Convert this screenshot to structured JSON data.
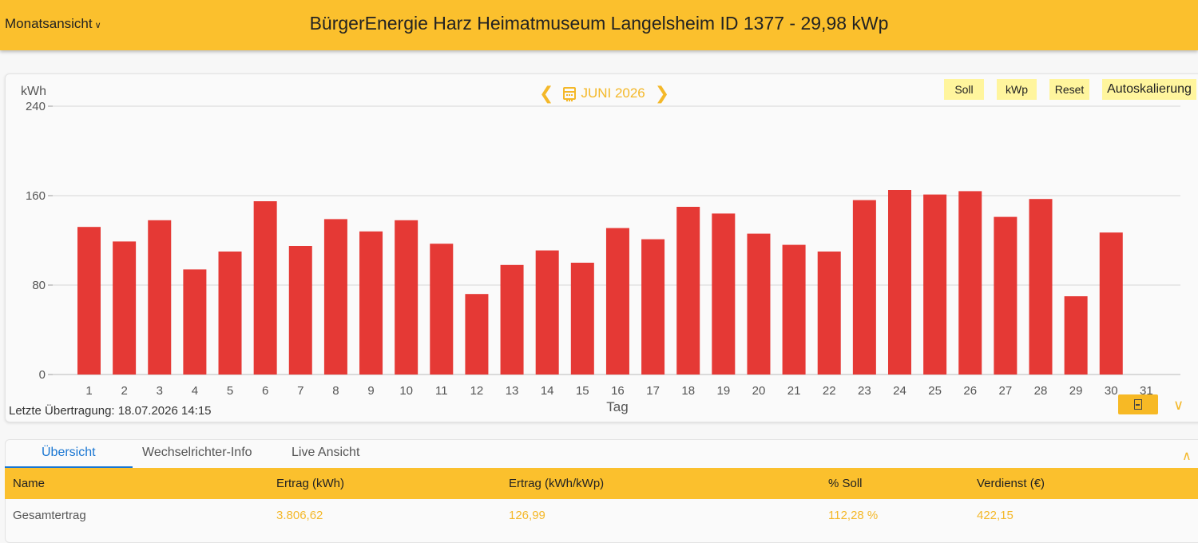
{
  "header": {
    "view_label": "Monatsansicht",
    "title": "BürgerEnergie Harz Heimatmuseum Langelsheim ID 1377 - 29,98 kWp"
  },
  "nav": {
    "prev": "❮",
    "month": "JUNI 2026",
    "next": "❯"
  },
  "toolbar": {
    "soll": "Soll",
    "kwp": "kWp",
    "reset": "Reset",
    "autoscale": "Autoskalierung"
  },
  "chart_data": {
    "type": "bar",
    "ylabel": "kWh",
    "xlabel": "Tag",
    "ylim": [
      0,
      240
    ],
    "yticks": [
      0,
      80,
      160,
      240
    ],
    "categories": [
      "1",
      "2",
      "3",
      "4",
      "5",
      "6",
      "7",
      "8",
      "9",
      "10",
      "11",
      "12",
      "13",
      "14",
      "15",
      "16",
      "17",
      "18",
      "19",
      "20",
      "21",
      "22",
      "23",
      "24",
      "25",
      "26",
      "27",
      "28",
      "29",
      "30",
      "31"
    ],
    "values": [
      132,
      119,
      138,
      94,
      110,
      155,
      115,
      139,
      128,
      138,
      117,
      72,
      98,
      111,
      100,
      131,
      121,
      150,
      144,
      126,
      116,
      110,
      156,
      165,
      161,
      164,
      141,
      157,
      70,
      127,
      null
    ],
    "bar_color": "#e53935",
    "grid": true
  },
  "footer": {
    "last_transfer": "Letzte Übertragung: 18.07.2026 14:15"
  },
  "tabs": [
    {
      "label": "Übersicht",
      "active": true
    },
    {
      "label": "Wechselrichter-Info",
      "active": false
    },
    {
      "label": "Live Ansicht",
      "active": false
    }
  ],
  "table": {
    "headers": [
      "Name",
      "Ertrag (kWh)",
      "Ertrag (kWh/kWp)",
      "% Soll",
      "Verdienst (€)"
    ],
    "rows": [
      [
        "Gesamtertrag",
        "3.806,62",
        "126,99",
        "112,28 %",
        "422,15"
      ]
    ]
  },
  "colors": {
    "accent": "#fbc02d",
    "bar": "#e53935",
    "highlight": "#f4b829",
    "tab_active": "#1976d2"
  }
}
